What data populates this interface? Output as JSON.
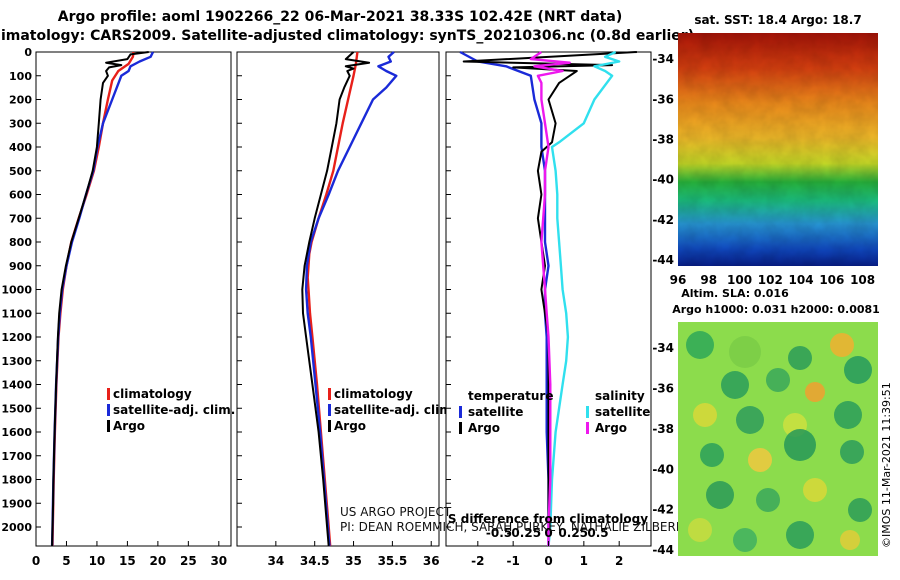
{
  "header": {
    "line1": "Argo profile: aoml 1902266_22 06-Mar-2021 38.33S 102.42E (NRT data)",
    "line2": "Climatology: CARS2009. Satellite-adjusted climatology: synTS_20210306.nc (0.8d earlier)"
  },
  "colors": {
    "climatology": "#e8201a",
    "satellite_adj": "#1a2ad8",
    "argo": "#000000",
    "salinity_sat": "#30e0ee",
    "salinity_argo": "#ee18ee"
  },
  "chart_data": [
    {
      "type": "line",
      "panel": "temperature",
      "ylabel": "Depth",
      "ylim": [
        2080,
        0
      ],
      "xlim": [
        0,
        32
      ],
      "x_ticks": [
        0,
        5,
        10,
        15,
        20,
        25,
        30
      ],
      "y_ticks": [
        0,
        100,
        200,
        300,
        400,
        500,
        600,
        700,
        800,
        900,
        1000,
        1100,
        1200,
        1300,
        1400,
        1500,
        1600,
        1700,
        1800,
        1900,
        2000
      ],
      "legend": [
        "climatology",
        "satellite-adj. clim.",
        "Argo"
      ],
      "series": [
        {
          "name": "climatology",
          "depth": [
            0,
            20,
            50,
            80,
            120,
            200,
            300,
            400,
            500,
            600,
            700,
            800,
            900,
            1000,
            1100,
            1200,
            1400,
            1600,
            1800,
            2000,
            2080
          ],
          "values": [
            16,
            15.9,
            15.2,
            13.5,
            12.5,
            11.8,
            11,
            10.3,
            9.5,
            8.3,
            7,
            5.8,
            5,
            4.4,
            4,
            3.7,
            3.35,
            3.1,
            2.9,
            2.75,
            2.7
          ]
        },
        {
          "name": "satellite-adj. clim.",
          "depth": [
            0,
            20,
            40,
            60,
            80,
            100,
            200,
            300,
            400,
            500,
            600,
            700,
            800,
            900,
            1000,
            1100,
            1200,
            1400,
            1600,
            1800,
            2000,
            2080
          ],
          "values": [
            19.2,
            18.8,
            17,
            15.5,
            15.2,
            14,
            12.5,
            11,
            10.1,
            9.4,
            8.2,
            7.1,
            5.9,
            5,
            4.3,
            3.9,
            3.65,
            3.3,
            3.05,
            2.85,
            2.7,
            2.65
          ]
        },
        {
          "name": "Argo",
          "depth": [
            0,
            10,
            30,
            45,
            55,
            65,
            80,
            100,
            130,
            200,
            300,
            400,
            500,
            600,
            700,
            800,
            900,
            1000,
            1100,
            1200,
            1400,
            1600,
            1800,
            1900,
            2000,
            2080
          ],
          "values": [
            18.5,
            15.5,
            15,
            11.5,
            14,
            12,
            11.5,
            11.8,
            11,
            10.6,
            10.3,
            10,
            9.3,
            8.2,
            7,
            5.8,
            4.9,
            4.2,
            3.8,
            3.6,
            3.3,
            3.05,
            2.85,
            2.8,
            2.7,
            2.65
          ]
        }
      ]
    },
    {
      "type": "line",
      "panel": "salinity",
      "ylim": [
        2080,
        0
      ],
      "xlim": [
        33.5,
        36.1
      ],
      "x_ticks": [
        34,
        34.5,
        35,
        35.5,
        36
      ],
      "legend": [
        "climatology",
        "satellite-adj. clim.",
        "Argo"
      ],
      "series": [
        {
          "name": "climatology",
          "depth": [
            0,
            50,
            100,
            200,
            300,
            400,
            500,
            600,
            700,
            800,
            850,
            900,
            950,
            1000,
            1100,
            1200,
            1400,
            1600,
            1800,
            2000,
            2080
          ],
          "values": [
            35.05,
            35.03,
            35.0,
            34.93,
            34.86,
            34.8,
            34.74,
            34.65,
            34.55,
            34.46,
            34.43,
            34.42,
            34.41,
            34.42,
            34.44,
            34.47,
            34.53,
            34.58,
            34.63,
            34.68,
            34.7
          ]
        },
        {
          "name": "satellite-adj. clim.",
          "depth": [
            0,
            20,
            40,
            60,
            80,
            100,
            150,
            200,
            300,
            400,
            500,
            600,
            700,
            800,
            900,
            1000,
            1100,
            1200,
            1400,
            1600,
            1800,
            2000,
            2080
          ],
          "values": [
            35.52,
            35.45,
            35.48,
            35.32,
            35.42,
            35.55,
            35.42,
            35.25,
            35.1,
            34.95,
            34.8,
            34.68,
            34.55,
            34.45,
            34.4,
            34.39,
            34.41,
            34.45,
            34.51,
            34.57,
            34.62,
            34.67,
            34.69
          ]
        },
        {
          "name": "Argo",
          "depth": [
            0,
            30,
            45,
            60,
            70,
            80,
            100,
            150,
            200,
            300,
            400,
            500,
            600,
            700,
            800,
            900,
            1000,
            1100,
            1200,
            1400,
            1600,
            1800,
            2000,
            2080
          ],
          "values": [
            35.0,
            34.9,
            35.2,
            34.9,
            35.0,
            34.92,
            34.95,
            34.88,
            34.82,
            34.78,
            34.72,
            34.66,
            34.58,
            34.5,
            34.43,
            34.37,
            34.34,
            34.35,
            34.39,
            34.47,
            34.55,
            34.61,
            34.66,
            34.68
          ]
        }
      ]
    },
    {
      "type": "line",
      "panel": "difference",
      "xlabel": "S difference from climatology",
      "ylim": [
        2080,
        0
      ],
      "xlim": [
        -2.9,
        2.9
      ],
      "x_ticks": [
        -2,
        -1,
        0,
        1,
        2
      ],
      "x2_ticks": [
        -0.5,
        -0.25,
        0,
        0.25,
        0.5
      ],
      "legend": [
        "temperature satellite",
        "temperature Argo",
        "salinity satellite",
        "salinity Argo"
      ],
      "series": [
        {
          "name": "temperature satellite",
          "depth": [
            0,
            40,
            60,
            100,
            200,
            300,
            400,
            500,
            600,
            700,
            800,
            900,
            1000,
            1100,
            1200,
            1400,
            1600,
            1800,
            2000,
            2080
          ],
          "values": [
            -2.5,
            -2.0,
            -1.2,
            -0.5,
            -0.4,
            -0.2,
            -0.2,
            -0.1,
            -0.1,
            -0.1,
            -0.1,
            0,
            -0.1,
            -0.1,
            -0.05,
            -0.05,
            -0.05,
            0,
            0,
            0
          ]
        },
        {
          "name": "temperature Argo",
          "depth": [
            0,
            40,
            55,
            65,
            80,
            100,
            130,
            200,
            300,
            380,
            420,
            500,
            600,
            700,
            800,
            900,
            1000,
            1100,
            1200,
            1400,
            1600,
            1800,
            2000,
            2080
          ],
          "values": [
            2.5,
            -2.4,
            1.8,
            -1.0,
            0.8,
            0.6,
            0.3,
            0,
            0.2,
            0.1,
            -0.2,
            -0.3,
            -0.2,
            -0.3,
            -0.2,
            -0.1,
            -0.2,
            -0.1,
            0,
            0,
            0,
            0,
            0,
            0
          ]
        },
        {
          "name": "salinity satellite",
          "depth": [
            0,
            20,
            40,
            60,
            80,
            100,
            200,
            300,
            380,
            400,
            500,
            600,
            700,
            800,
            900,
            1000,
            1100,
            1200,
            1300,
            1400,
            1600,
            1800,
            2000,
            2080
          ],
          "values": [
            1.9,
            1.6,
            2.0,
            1.3,
            1.6,
            1.8,
            1.3,
            1.0,
            0.3,
            0.1,
            0.2,
            0.25,
            0.25,
            0.3,
            0.35,
            0.4,
            0.5,
            0.55,
            0.5,
            0.4,
            0.2,
            0.1,
            0.05,
            0
          ]
        },
        {
          "name": "salinity Argo",
          "depth": [
            0,
            30,
            45,
            60,
            80,
            100,
            130,
            200,
            300,
            400,
            500,
            600,
            700,
            800,
            900,
            1000,
            1100,
            1200,
            1400,
            1600,
            1800,
            2000,
            2080
          ],
          "values": [
            -0.2,
            -0.5,
            0.6,
            -0.4,
            0.4,
            -0.3,
            -0.2,
            -0.2,
            -0.1,
            0,
            -0.1,
            -0.1,
            -0.15,
            -0.2,
            -0.15,
            -0.1,
            -0.05,
            0,
            0.05,
            0.05,
            0.05,
            0,
            0
          ]
        }
      ]
    },
    {
      "type": "heatmap",
      "panel": "sat-sst",
      "title": "sat. SST: 18.4 Argo: 18.7",
      "x_ticks": [
        96,
        98,
        100,
        102,
        104,
        106,
        108
      ],
      "y_ticks": [
        -34,
        -36,
        -38,
        -40,
        -42,
        -44
      ],
      "xlim": [
        96,
        109
      ],
      "ylim": [
        -44.3,
        -32.7
      ]
    },
    {
      "type": "heatmap",
      "panel": "altim-sla",
      "title": "Altim. SLA: 0.016",
      "subtitle": "Argo h1000: 0.031 h2000: 0.0081",
      "y_ticks": [
        -34,
        -36,
        -38,
        -40,
        -42,
        -44
      ],
      "xlim": [
        96,
        109
      ],
      "ylim": [
        -44.3,
        -32.7
      ]
    }
  ],
  "legend_labels": {
    "climatology": "climatology",
    "satellite_adj": "satellite-adj. clim.",
    "argo": "Argo",
    "temperature": "temperature",
    "salinity": "salinity",
    "satellite": "satellite"
  },
  "credits": {
    "project": "US ARGO PROJECT",
    "pi": "PI: DEAN ROEMMICH, SARAH PURKEY, NATHALIE ZILBERMAN, JOHN GILSON",
    "watermark": "©IMOS 11-Mar-2021 11:39:51"
  }
}
